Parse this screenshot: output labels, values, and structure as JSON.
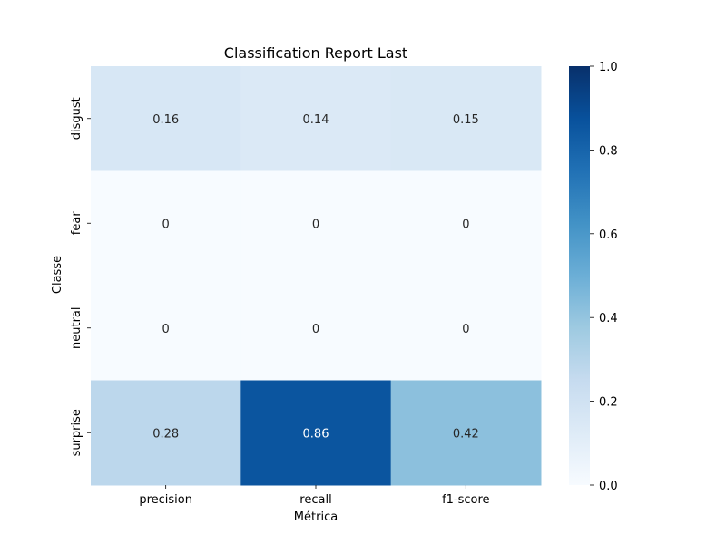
{
  "chart_data": {
    "type": "heatmap",
    "title": "Classification Report Last",
    "xlabel": "Métrica",
    "ylabel": "Classe",
    "x_categories": [
      "precision",
      "recall",
      "f1-score"
    ],
    "y_categories": [
      "disgust",
      "fear",
      "neutral",
      "surprise"
    ],
    "values": [
      [
        0.16,
        0.14,
        0.15
      ],
      [
        0,
        0,
        0
      ],
      [
        0,
        0,
        0
      ],
      [
        0.28,
        0.86,
        0.42
      ]
    ],
    "cell_labels": [
      [
        "0.16",
        "0.14",
        "0.15"
      ],
      [
        "0",
        "0",
        "0"
      ],
      [
        "0",
        "0",
        "0"
      ],
      [
        "0.28",
        "0.86",
        "0.42"
      ]
    ],
    "colormap": "Blues",
    "vmin": 0.0,
    "vmax": 1.0,
    "colorbar_ticks": [
      "0.0",
      "0.2",
      "0.4",
      "0.6",
      "0.8",
      "1.0"
    ]
  }
}
